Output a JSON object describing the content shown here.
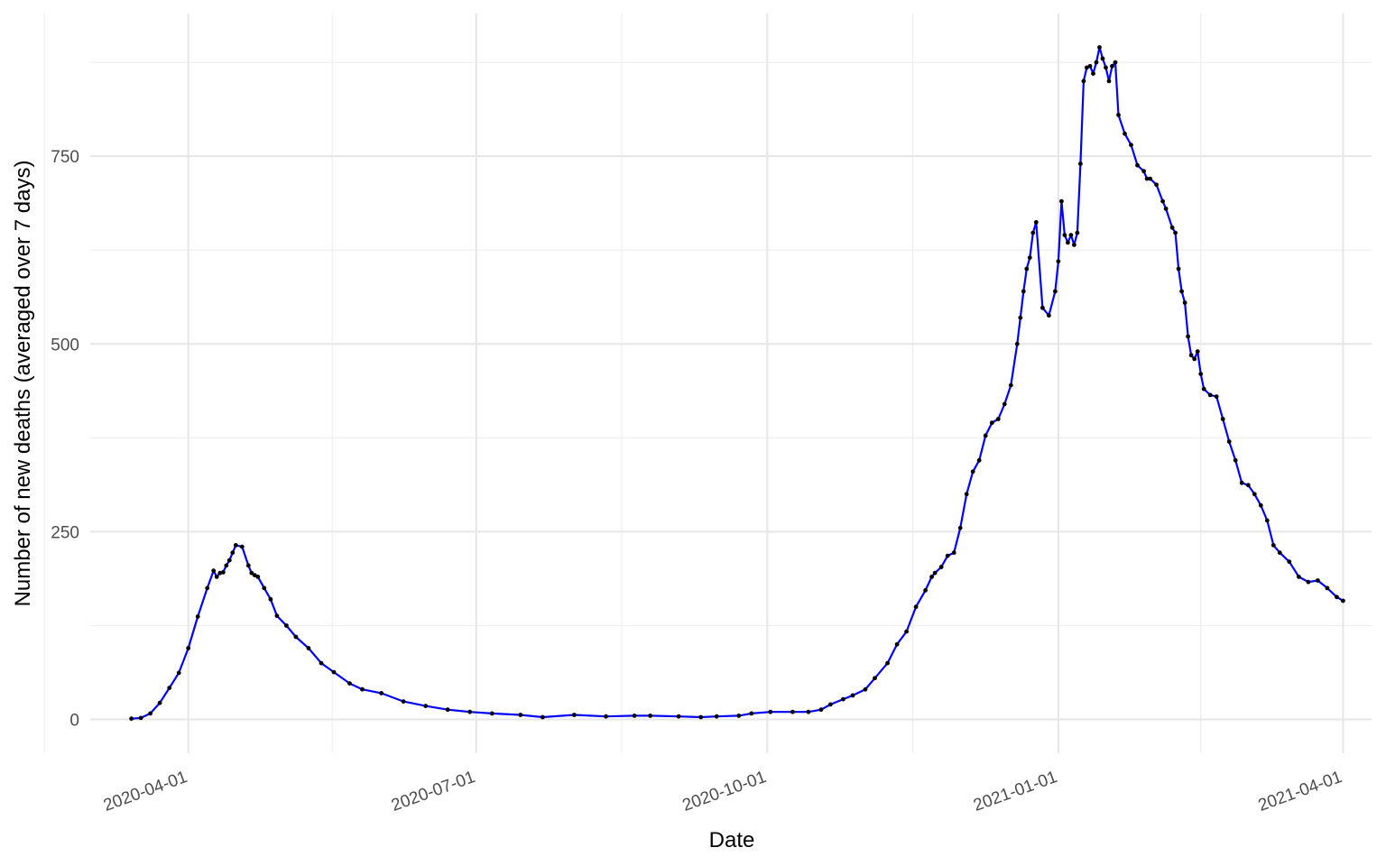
{
  "chart_data": {
    "type": "line",
    "title": "",
    "xlabel": "Date",
    "ylabel": "Number of new deaths (averaged over 7 days)",
    "x_type": "date",
    "xlim": [
      "2020-03-01",
      "2021-04-10"
    ],
    "ylim": [
      -45,
      940
    ],
    "x_ticks": [
      "2020-04-01",
      "2020-07-01",
      "2020-10-01",
      "2021-01-01",
      "2021-04-01"
    ],
    "y_ticks": [
      0,
      250,
      500,
      750
    ],
    "grid": true,
    "legend": "none",
    "colors": {
      "line": "#0000ff",
      "points": "#000000",
      "grid": "#e6e6e6"
    },
    "series": [
      {
        "x": [
          "2020-03-14",
          "2020-03-17",
          "2020-03-20",
          "2020-03-23",
          "2020-03-26",
          "2020-03-29",
          "2020-04-01",
          "2020-04-04",
          "2020-04-07",
          "2020-04-09",
          "2020-04-10",
          "2020-04-11",
          "2020-04-12",
          "2020-04-13",
          "2020-04-14",
          "2020-04-15",
          "2020-04-16",
          "2020-04-18",
          "2020-04-20",
          "2020-04-21",
          "2020-04-22",
          "2020-04-23",
          "2020-04-25",
          "2020-04-27",
          "2020-04-29",
          "2020-05-02",
          "2020-05-05",
          "2020-05-09",
          "2020-05-13",
          "2020-05-17",
          "2020-05-22",
          "2020-05-26",
          "2020-06-01",
          "2020-06-08",
          "2020-06-15",
          "2020-06-22",
          "2020-06-29",
          "2020-07-06",
          "2020-07-15",
          "2020-07-22",
          "2020-08-01",
          "2020-08-11",
          "2020-08-20",
          "2020-08-25",
          "2020-09-03",
          "2020-09-10",
          "2020-09-15",
          "2020-09-22",
          "2020-09-26",
          "2020-10-02",
          "2020-10-09",
          "2020-10-14",
          "2020-10-18",
          "2020-10-21",
          "2020-10-25",
          "2020-10-28",
          "2020-11-01",
          "2020-11-04",
          "2020-11-08",
          "2020-11-11",
          "2020-11-14",
          "2020-11-17",
          "2020-11-20",
          "2020-11-22",
          "2020-11-23",
          "2020-11-25",
          "2020-11-27",
          "2020-11-29",
          "2020-12-01",
          "2020-12-03",
          "2020-12-05",
          "2020-12-07",
          "2020-12-09",
          "2020-12-11",
          "2020-12-13",
          "2020-12-15",
          "2020-12-17",
          "2020-12-19",
          "2020-12-20",
          "2020-12-21",
          "2020-12-22",
          "2020-12-23",
          "2020-12-24",
          "2020-12-25",
          "2020-12-27",
          "2020-12-29",
          "2020-12-31",
          "2021-01-01",
          "2021-01-02",
          "2021-01-03",
          "2021-01-04",
          "2021-01-05",
          "2021-01-06",
          "2021-01-07",
          "2021-01-08",
          "2021-01-09",
          "2021-01-10",
          "2021-01-11",
          "2021-01-12",
          "2021-01-13",
          "2021-01-14",
          "2021-01-15",
          "2021-01-16",
          "2021-01-17",
          "2021-01-18",
          "2021-01-19",
          "2021-01-20",
          "2021-01-22",
          "2021-01-24",
          "2021-01-26",
          "2021-01-28",
          "2021-01-29",
          "2021-01-30",
          "2021-02-01",
          "2021-02-03",
          "2021-02-04",
          "2021-02-06",
          "2021-02-07",
          "2021-02-08",
          "2021-02-09",
          "2021-02-10",
          "2021-02-11",
          "2021-02-12",
          "2021-02-13",
          "2021-02-14",
          "2021-02-15",
          "2021-02-16",
          "2021-02-18",
          "2021-02-20",
          "2021-02-22",
          "2021-02-24",
          "2021-02-26",
          "2021-02-28",
          "2021-03-02",
          "2021-03-04",
          "2021-03-06",
          "2021-03-08",
          "2021-03-10",
          "2021-03-12",
          "2021-03-15",
          "2021-03-18",
          "2021-03-21",
          "2021-03-24",
          "2021-03-27",
          "2021-03-30",
          "2021-04-01"
        ],
        "y": [
          1,
          2,
          8,
          22,
          42,
          62,
          95,
          137,
          175,
          198,
          190,
          195,
          196,
          205,
          212,
          222,
          232,
          230,
          205,
          195,
          192,
          190,
          175,
          160,
          138,
          125,
          110,
          95,
          75,
          63,
          48,
          40,
          35,
          24,
          18,
          13,
          10,
          8,
          6,
          3,
          6,
          4,
          5,
          5,
          4,
          3,
          4,
          5,
          8,
          10,
          10,
          10,
          13,
          20,
          27,
          32,
          40,
          55,
          75,
          100,
          117,
          150,
          172,
          190,
          195,
          203,
          218,
          222,
          255,
          300,
          330,
          345,
          378,
          395,
          400,
          420,
          445,
          500,
          535,
          570,
          600,
          615,
          648,
          662,
          548,
          538,
          570,
          610,
          690,
          645,
          635,
          645,
          632,
          648,
          740,
          850,
          868,
          870,
          860,
          875,
          895,
          880,
          868,
          850,
          870,
          875,
          805,
          780,
          765,
          738,
          730,
          720,
          720,
          712,
          690,
          680,
          655,
          648,
          600,
          570,
          555,
          510,
          485,
          480,
          490,
          460,
          440,
          432,
          430,
          400,
          370,
          345,
          315,
          312,
          300,
          285,
          265,
          232,
          222,
          210,
          190,
          183,
          185,
          175,
          163,
          158
        ]
      }
    ]
  }
}
